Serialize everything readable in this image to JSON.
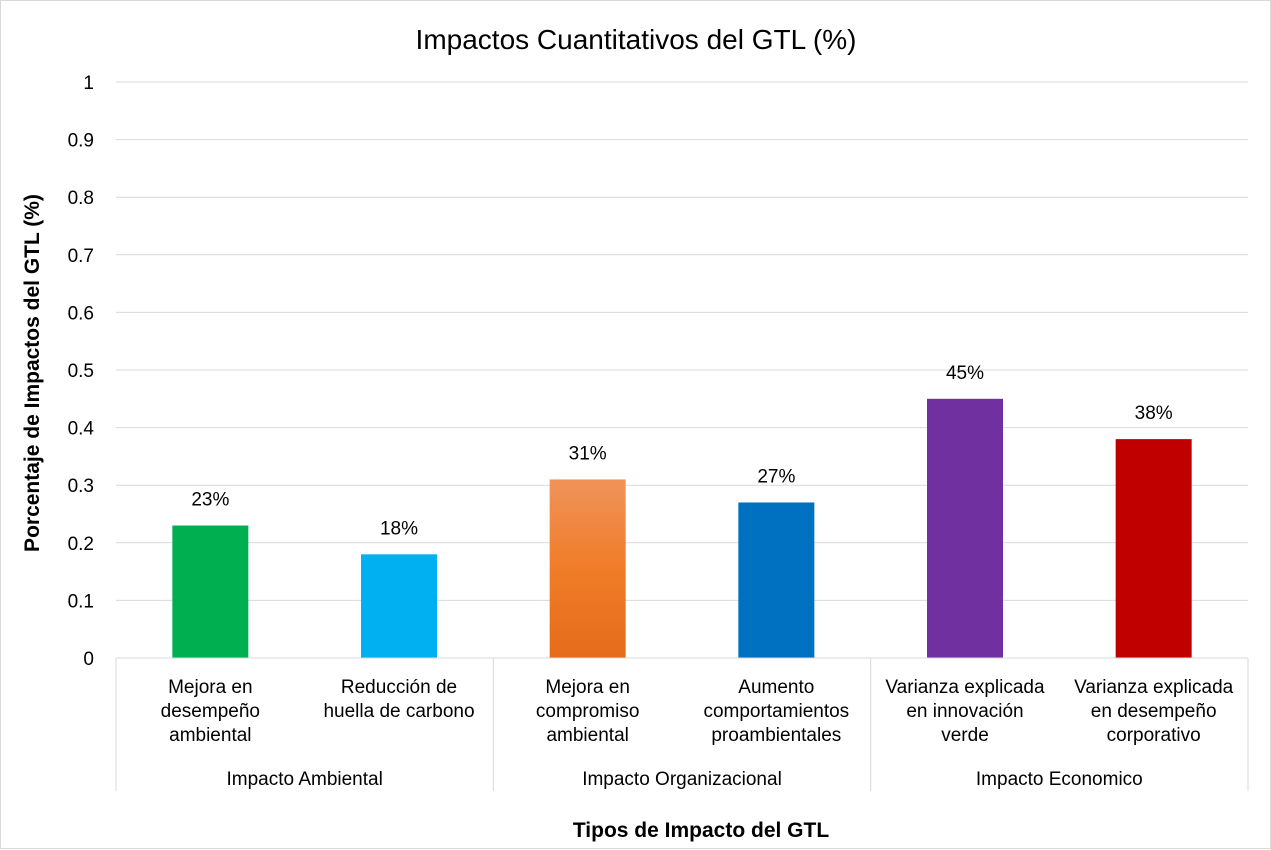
{
  "chart_data": {
    "type": "bar",
    "title": "Impactos Cuantitativos del GTL (%)",
    "xlabel": "Tipos de Impacto del GTL",
    "ylabel": "Porcentaje de Impactos del GTL (%)",
    "ylim": [
      0,
      1
    ],
    "yticks": [
      "0",
      "0.1",
      "0.2",
      "0.3",
      "0.4",
      "0.5",
      "0.6",
      "0.7",
      "0.8",
      "0.9",
      "1"
    ],
    "grid": true,
    "groups": [
      {
        "label": "Impacto Ambiental",
        "categories": [
          0,
          1
        ]
      },
      {
        "label": "Impacto Organizacional",
        "categories": [
          2,
          3
        ]
      },
      {
        "label": "Impacto Economico",
        "categories": [
          4,
          5
        ]
      }
    ],
    "categories": [
      [
        "Mejora en",
        "desempeño",
        "ambiental"
      ],
      [
        "Reducción de",
        "huella de carbono"
      ],
      [
        "Mejora en",
        "compromiso",
        "ambiental"
      ],
      [
        "Aumento",
        "comportamientos",
        "proambientales"
      ],
      [
        "Varianza explicada",
        "en innovación",
        "verde"
      ],
      [
        "Varianza explicada",
        "en desempeño",
        "corporativo"
      ]
    ],
    "values": [
      0.23,
      0.18,
      0.31,
      0.27,
      0.45,
      0.38
    ],
    "data_labels": [
      "23%",
      "18%",
      "31%",
      "27%",
      "45%",
      "38%"
    ],
    "colors": [
      "#00b050",
      "#00b0f0",
      "#ed7d31",
      "#0070c0",
      "#7030a0",
      "#c00000"
    ]
  }
}
